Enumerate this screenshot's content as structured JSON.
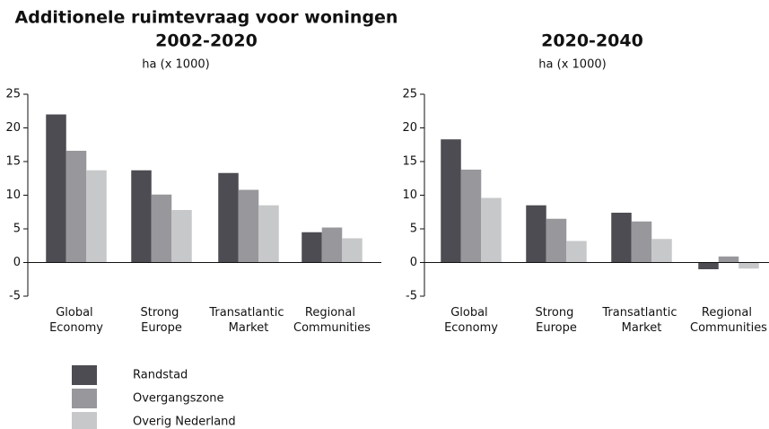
{
  "title": "Additionele ruimtevraag voor woningen",
  "chart_data": [
    {
      "type": "bar",
      "title": "2002-2020",
      "ylabel": "ha (x 1000)",
      "categories": [
        "Global Economy",
        "Strong Europe",
        "Transatlantic Market",
        "Regional Communities"
      ],
      "series": [
        {
          "name": "Randstad",
          "color": "#4d4c52",
          "values": [
            22,
            13.7,
            13.3,
            4.5
          ]
        },
        {
          "name": "Overgangszone",
          "color": "#98979c",
          "values": [
            16.6,
            10.1,
            10.8,
            5.2
          ]
        },
        {
          "name": "Overig Nederland",
          "color": "#c7c8ca",
          "values": [
            13.7,
            7.8,
            8.5,
            3.6
          ]
        }
      ],
      "ylim": [
        -5,
        25
      ],
      "yticks": [
        -5,
        0,
        5,
        10,
        15,
        20,
        25
      ]
    },
    {
      "type": "bar",
      "title": "2020-2040",
      "ylabel": "ha (x 1000)",
      "categories": [
        "Global Economy",
        "Strong Europe",
        "Transatlantic Market",
        "Regional Communities"
      ],
      "series": [
        {
          "name": "Randstad",
          "color": "#4d4c52",
          "values": [
            18.3,
            8.5,
            7.4,
            -1
          ]
        },
        {
          "name": "Overgangszone",
          "color": "#98979c",
          "values": [
            13.8,
            6.5,
            6.1,
            0.9
          ]
        },
        {
          "name": "Overig Nederland",
          "color": "#c7c8ca",
          "values": [
            9.6,
            3.2,
            3.5,
            -0.9
          ]
        }
      ],
      "ylim": [
        -5,
        25
      ],
      "yticks": [
        -5,
        0,
        5,
        10,
        15,
        20,
        25
      ]
    }
  ]
}
